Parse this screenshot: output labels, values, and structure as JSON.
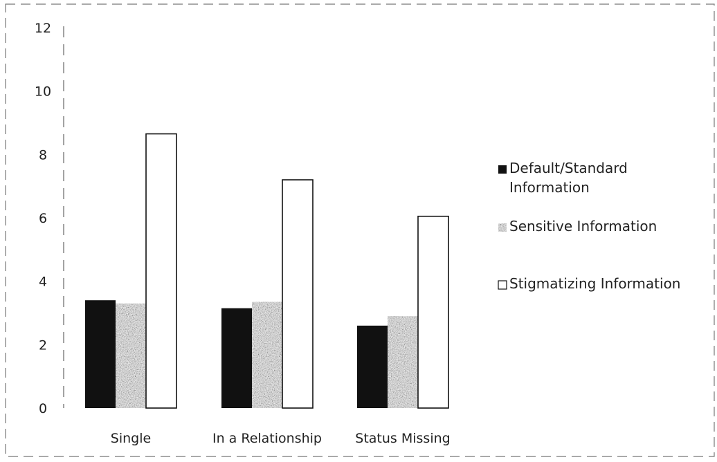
{
  "chart_data": {
    "type": "bar",
    "title": "",
    "xlabel": "",
    "ylabel": "",
    "ylim": [
      0,
      12
    ],
    "yticks": [
      0,
      2,
      4,
      6,
      8,
      10,
      12
    ],
    "categories": [
      "Single",
      "In a Relationship",
      "Status Missing"
    ],
    "series": [
      {
        "name": "Default/Standard Information",
        "name_lines": [
          "Default/Standard",
          "Information"
        ],
        "values": [
          3.4,
          3.15,
          2.6
        ],
        "color": "#111111",
        "fill": "solid"
      },
      {
        "name": "Sensitive Information",
        "name_lines": [
          "Sensitive Information"
        ],
        "values": [
          3.3,
          3.35,
          2.9
        ],
        "color": "#4a4a4a",
        "fill": "noise"
      },
      {
        "name": "Stigmatizing Information",
        "name_lines": [
          "Stigmatizing Information"
        ],
        "values": [
          8.65,
          7.2,
          6.05
        ],
        "color": "#ffffff",
        "fill": "outline"
      }
    ],
    "legend_position": "right",
    "grid": false
  }
}
